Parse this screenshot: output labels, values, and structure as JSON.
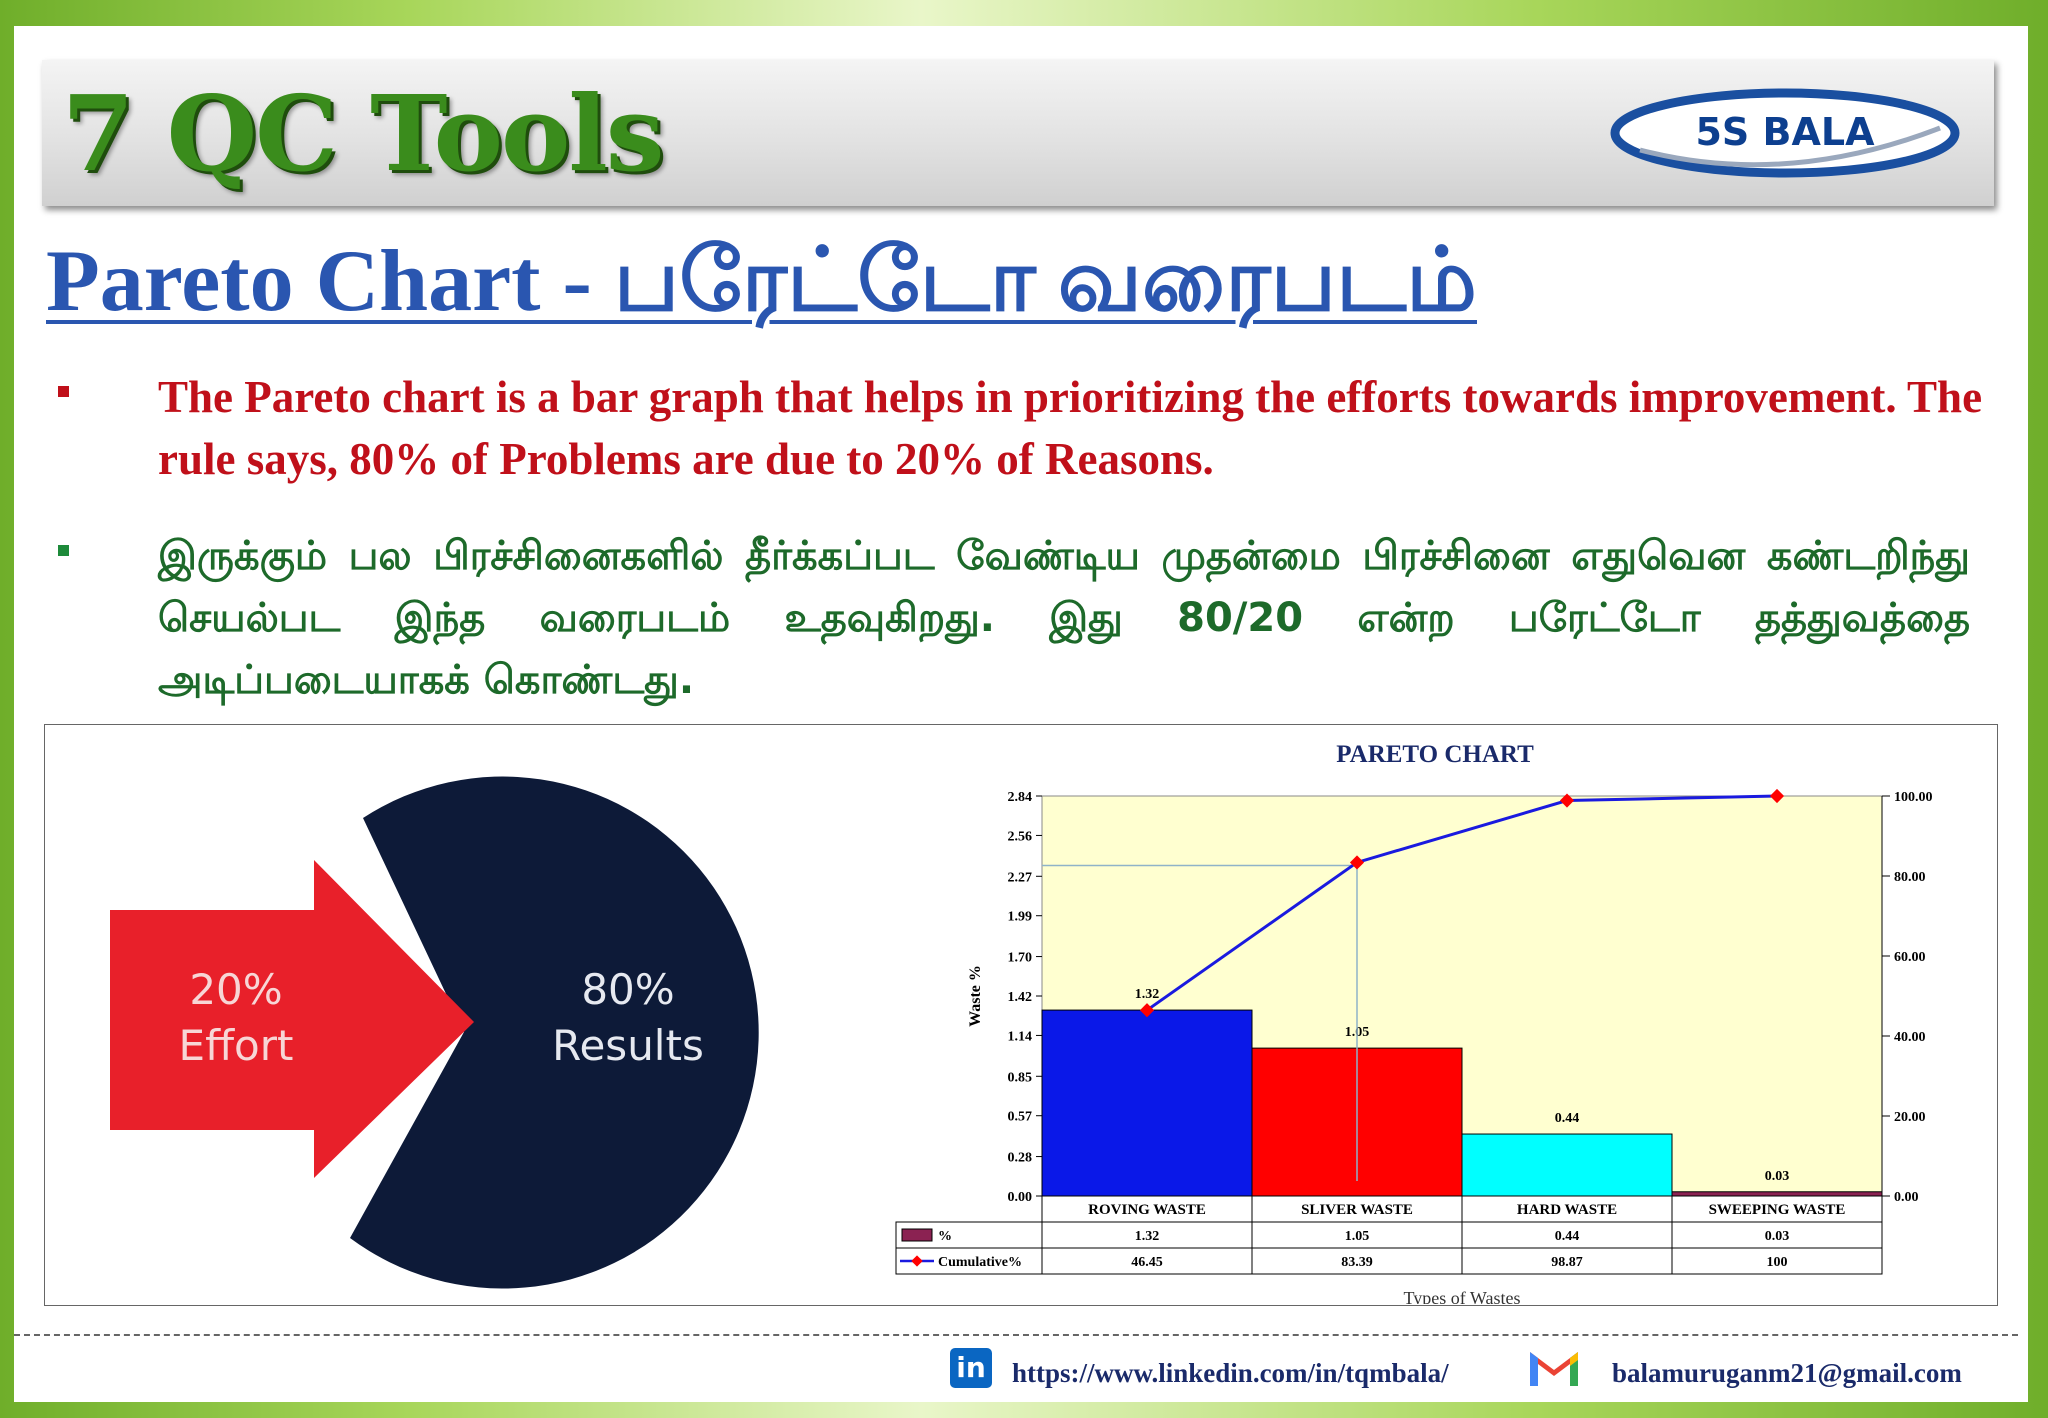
{
  "header": {
    "title": "7 QC Tools",
    "logo_text": "5S BALA"
  },
  "page_title": "Pareto Chart - பரேட்டோ  வரைபடம்",
  "bullets": [
    "The Pareto chart is a bar graph that helps in prioritizing the efforts towards improvement. The rule says, 80% of Problems are due to 20% of Reasons.",
    "இருக்கும் பல பிரச்சினைகளில் தீர்க்கப்பட வேண்டிய முதன்மை பிரச்சினை எதுவென கண்டறிந்து செயல்பட இந்த வரைபடம் உதவுகிறது. இது 80/20 என்ற பரேட்டோ தத்துவத்தை அடிப்படையாகக் கொண்டது."
  ],
  "graphic": {
    "arrow_line1": "20%",
    "arrow_line2": "Effort",
    "circle_line1": "80%",
    "circle_line2": "Results"
  },
  "chart_data": {
    "type": "bar",
    "title": "PARETO CHART",
    "xlabel": "Types of Wastes",
    "ylabel": "Waste %",
    "categories": [
      "ROVING WASTE",
      "SLIVER WASTE",
      "HARD WASTE",
      "SWEEPING WASTE"
    ],
    "series": [
      {
        "name": "%",
        "type": "bar",
        "values": [
          1.32,
          1.05,
          0.44,
          0.03
        ],
        "colors": [
          "#0a18e8",
          "#ff0000",
          "#00ffff",
          "#8b2252"
        ]
      },
      {
        "name": "Cumulative%",
        "type": "line",
        "axis": "right",
        "values": [
          46.45,
          83.39,
          98.87,
          100
        ],
        "color": "#1a1adf"
      }
    ],
    "y_left_ticks": [
      "0.00",
      "0.28",
      "0.57",
      "0.85",
      "1.14",
      "1.42",
      "1.70",
      "1.99",
      "2.27",
      "2.56",
      "2.84"
    ],
    "y_right_ticks": [
      "0.00",
      "20.00",
      "40.00",
      "60.00",
      "80.00",
      "100.00"
    ],
    "ylim": [
      0,
      2.84
    ],
    "y2lim": [
      0,
      100
    ],
    "table_rows": [
      {
        "label": "%",
        "values": [
          "1.32",
          "1.05",
          "0.44",
          "0.03"
        ]
      },
      {
        "label": "Cumulative%",
        "values": [
          "46.45",
          "83.39",
          "98.87",
          "100"
        ]
      }
    ],
    "bar_labels": [
      "1.32",
      "1.05",
      "0.44",
      "0.03"
    ],
    "plot_background": "#ffffd0",
    "legend": "data-table"
  },
  "footer": {
    "linkedin_url": "https://www.linkedin.com/in/tqmbala/",
    "linkedin_icon": "in",
    "email": "balamuruganm21@gmail.com"
  },
  "colors": {
    "title_green": "#3a8c1c",
    "page_title_blue": "#2a56b0",
    "english_red": "#c0101a",
    "tamil_green": "#1d6a2a",
    "arrow_red": "#e8202a",
    "circle_navy": "#0d1a38"
  }
}
